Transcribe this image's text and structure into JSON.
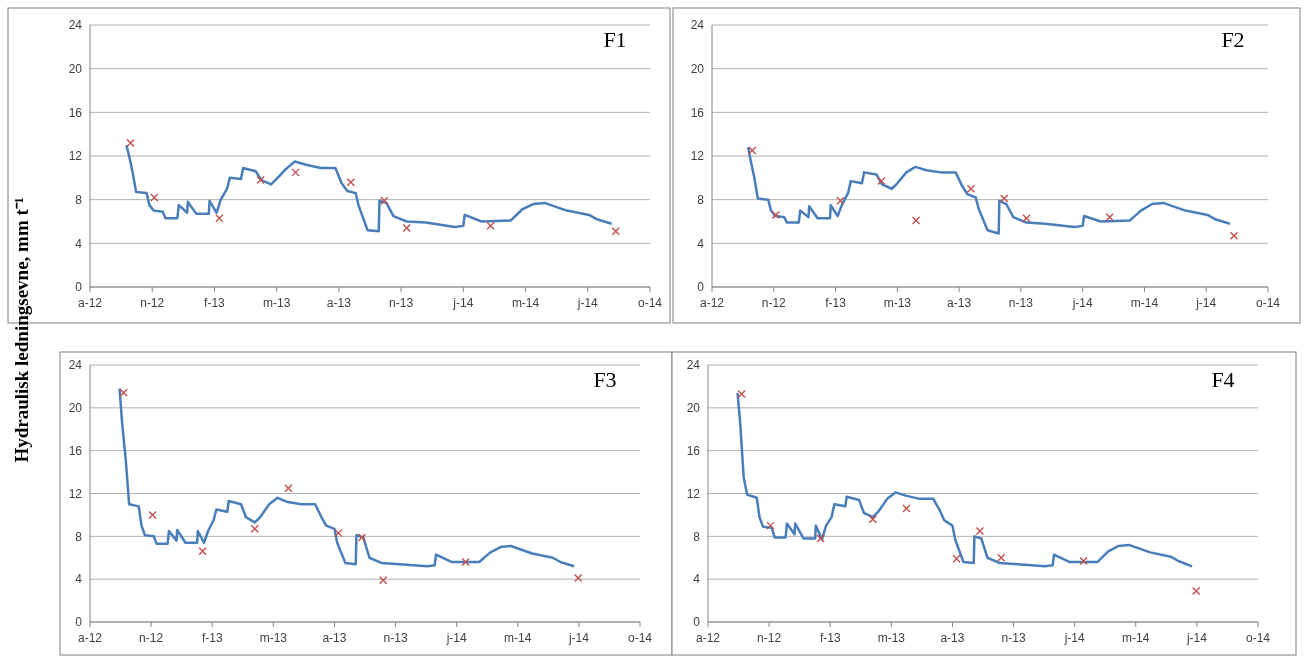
{
  "chart_data": [
    {
      "type": "line",
      "title": "F1",
      "ylabel": "Hydraulisk ledningsevne, mm t⁻¹",
      "ylim": [
        0,
        24
      ],
      "yticks": [
        0,
        4,
        8,
        12,
        16,
        20,
        24
      ],
      "xlim": [
        "2012-08-11",
        "2014-10-21"
      ],
      "xticks": [
        {
          "value": "2012-08-11",
          "label": "a-12"
        },
        {
          "value": "2012-11-08",
          "label": "n-12"
        },
        {
          "value": "2013-02-05",
          "label": "f-13"
        },
        {
          "value": "2013-05-05",
          "label": "m-13"
        },
        {
          "value": "2013-08-02",
          "label": "a-13"
        },
        {
          "value": "2013-10-30",
          "label": "n-13"
        },
        {
          "value": "2014-01-27",
          "label": "j-14"
        },
        {
          "value": "2014-04-26",
          "label": "m-14"
        },
        {
          "value": "2014-07-24",
          "label": "j-14"
        },
        {
          "value": "2014-10-21",
          "label": "o-14"
        }
      ],
      "grid": "y",
      "legend": false,
      "series": [
        {
          "type": "line",
          "color": "#4a7ebb",
          "x": [
            "2012-10-02",
            "2012-10-06",
            "2012-10-11",
            "2012-10-16",
            "2012-10-31",
            "2012-11-04",
            "2012-11-10",
            "2012-11-23",
            "2012-11-27",
            "2012-12-14",
            "2012-12-16",
            "2012-12-28",
            "2012-12-29",
            "2013-01-10",
            "2013-01-28",
            "2013-01-29",
            "2013-02-08",
            "2013-02-14",
            "2013-02-23",
            "2013-02-27",
            "2013-03-15",
            "2013-03-18",
            "2013-04-05",
            "2013-04-13",
            "2013-04-27",
            "2013-05-05",
            "2013-05-18",
            "2013-05-31",
            "2013-06-16",
            "2013-07-07",
            "2013-07-28",
            "2013-08-06",
            "2013-08-14",
            "2013-08-26",
            "2013-08-30",
            "2013-09-12",
            "2013-09-28",
            "2013-09-29",
            "2013-10-09",
            "2013-10-19",
            "2013-11-07",
            "2013-12-04",
            "2014-01-15",
            "2014-01-27",
            "2014-01-29",
            "2014-02-22",
            "2014-04-05",
            "2014-04-21",
            "2014-05-07",
            "2014-05-23",
            "2014-06-24",
            "2014-07-26",
            "2014-08-06",
            "2014-08-27"
          ],
          "values": [
            13.0,
            12.0,
            10.5,
            8.7,
            8.6,
            7.5,
            7.0,
            6.9,
            6.3,
            6.3,
            7.5,
            6.8,
            7.8,
            6.7,
            6.7,
            7.9,
            6.8,
            8.0,
            9.0,
            10.0,
            9.9,
            10.9,
            10.6,
            9.8,
            9.4,
            9.9,
            10.8,
            11.5,
            11.2,
            10.9,
            10.9,
            9.5,
            8.8,
            8.6,
            7.5,
            5.2,
            5.1,
            7.9,
            7.7,
            6.5,
            6.0,
            5.9,
            5.5,
            5.6,
            6.6,
            6.0,
            6.1,
            7.1,
            7.6,
            7.7,
            7.0,
            6.6,
            6.2,
            5.8
          ]
        },
        {
          "type": "scatter",
          "color": "#c0504d",
          "marker": "cross",
          "x": [
            "2012-10-08",
            "2012-11-11",
            "2013-02-12",
            "2013-04-12",
            "2013-06-01",
            "2013-08-19",
            "2013-10-06",
            "2013-11-07",
            "2014-03-07",
            "2014-09-02"
          ],
          "values": [
            13.2,
            8.2,
            6.3,
            9.8,
            10.5,
            9.6,
            7.9,
            5.4,
            5.6,
            5.1
          ]
        }
      ]
    },
    {
      "type": "line",
      "title": "F2",
      "ylim": [
        0,
        24
      ],
      "yticks": [
        0,
        4,
        8,
        12,
        16,
        20,
        24
      ],
      "xlim": [
        "2012-08-11",
        "2014-10-21"
      ],
      "xticks": [
        {
          "value": "2012-08-11",
          "label": "a-12"
        },
        {
          "value": "2012-11-08",
          "label": "n-12"
        },
        {
          "value": "2013-02-05",
          "label": "f-13"
        },
        {
          "value": "2013-05-05",
          "label": "m-13"
        },
        {
          "value": "2013-08-02",
          "label": "a-13"
        },
        {
          "value": "2013-10-30",
          "label": "n-13"
        },
        {
          "value": "2014-01-27",
          "label": "j-14"
        },
        {
          "value": "2014-04-26",
          "label": "m-14"
        },
        {
          "value": "2014-07-24",
          "label": "j-14"
        },
        {
          "value": "2014-10-21",
          "label": "o-14"
        }
      ],
      "grid": "y",
      "legend": false,
      "series": [
        {
          "type": "line",
          "color": "#4a7ebb",
          "x": [
            "2012-10-02",
            "2012-10-06",
            "2012-10-11",
            "2012-10-16",
            "2012-10-31",
            "2012-11-04",
            "2012-11-10",
            "2012-11-23",
            "2012-11-27",
            "2012-12-14",
            "2012-12-16",
            "2012-12-28",
            "2012-12-29",
            "2013-01-10",
            "2013-01-28",
            "2013-01-29",
            "2013-02-08",
            "2013-02-14",
            "2013-02-23",
            "2013-02-27",
            "2013-03-15",
            "2013-03-18",
            "2013-04-05",
            "2013-04-13",
            "2013-04-27",
            "2013-05-05",
            "2013-05-18",
            "2013-05-31",
            "2013-06-16",
            "2013-07-07",
            "2013-07-28",
            "2013-08-06",
            "2013-08-14",
            "2013-08-26",
            "2013-08-30",
            "2013-09-12",
            "2013-09-28",
            "2013-09-29",
            "2013-10-09",
            "2013-10-19",
            "2013-11-07",
            "2013-12-04",
            "2014-01-15",
            "2014-01-27",
            "2014-01-29",
            "2014-02-22",
            "2014-04-05",
            "2014-04-21",
            "2014-05-07",
            "2014-05-23",
            "2014-06-24",
            "2014-07-26",
            "2014-08-06",
            "2014-08-27"
          ],
          "values": [
            12.8,
            11.5,
            10.0,
            8.1,
            8.0,
            7.0,
            6.5,
            6.4,
            5.9,
            5.9,
            7.0,
            6.4,
            7.4,
            6.3,
            6.3,
            7.5,
            6.5,
            7.5,
            8.6,
            9.7,
            9.5,
            10.5,
            10.3,
            9.4,
            9.0,
            9.5,
            10.5,
            11.0,
            10.7,
            10.5,
            10.5,
            9.3,
            8.5,
            8.2,
            7.2,
            5.2,
            4.9,
            7.9,
            7.6,
            6.4,
            5.9,
            5.8,
            5.5,
            5.6,
            6.5,
            6.0,
            6.1,
            7.0,
            7.6,
            7.7,
            7.0,
            6.6,
            6.2,
            5.8
          ]
        },
        {
          "type": "scatter",
          "color": "#c0504d",
          "marker": "cross",
          "x": [
            "2012-10-08",
            "2012-11-11",
            "2013-02-12",
            "2013-04-12",
            "2013-06-01",
            "2013-08-19",
            "2013-10-06",
            "2013-11-07",
            "2014-03-07",
            "2014-09-02"
          ],
          "values": [
            12.5,
            6.6,
            7.9,
            9.7,
            6.1,
            9.0,
            8.1,
            6.3,
            6.4,
            4.7
          ]
        }
      ]
    },
    {
      "type": "line",
      "title": "F3",
      "ylim": [
        0,
        24
      ],
      "yticks": [
        0,
        4,
        8,
        12,
        16,
        20,
        24
      ],
      "xlim": [
        "2012-08-11",
        "2014-10-21"
      ],
      "xticks": [
        {
          "value": "2012-08-11",
          "label": "a-12"
        },
        {
          "value": "2012-11-08",
          "label": "n-12"
        },
        {
          "value": "2013-02-05",
          "label": "f-13"
        },
        {
          "value": "2013-05-05",
          "label": "m-13"
        },
        {
          "value": "2013-08-02",
          "label": "a-13"
        },
        {
          "value": "2013-10-30",
          "label": "n-13"
        },
        {
          "value": "2014-01-27",
          "label": "j-14"
        },
        {
          "value": "2014-04-26",
          "label": "m-14"
        },
        {
          "value": "2014-07-24",
          "label": "j-14"
        },
        {
          "value": "2014-10-21",
          "label": "o-14"
        }
      ],
      "grid": "y",
      "legend": false,
      "series": [
        {
          "type": "line",
          "color": "#4a7ebb",
          "x": [
            "2012-09-23",
            "2012-09-27",
            "2012-10-02",
            "2012-10-07",
            "2012-10-21",
            "2012-10-25",
            "2012-10-30",
            "2012-11-12",
            "2012-11-16",
            "2012-12-02",
            "2012-12-04",
            "2012-12-15",
            "2012-12-16",
            "2012-12-28",
            "2013-01-14",
            "2013-01-15",
            "2013-01-24",
            "2013-01-30",
            "2013-02-07",
            "2013-02-11",
            "2013-02-27",
            "2013-03-01",
            "2013-03-19",
            "2013-03-26",
            "2013-04-08",
            "2013-04-16",
            "2013-04-29",
            "2013-05-11",
            "2013-05-26",
            "2013-06-15",
            "2013-07-05",
            "2013-07-14",
            "2013-07-21",
            "2013-08-02",
            "2013-08-06",
            "2013-08-18",
            "2013-09-02",
            "2013-09-03",
            "2013-09-13",
            "2013-09-22",
            "2013-10-10",
            "2013-11-05",
            "2013-12-15",
            "2013-12-26",
            "2013-12-28",
            "2014-01-20",
            "2014-03-01",
            "2014-03-17",
            "2014-04-01",
            "2014-04-16",
            "2014-05-17",
            "2014-06-16",
            "2014-06-27",
            "2014-07-17"
          ],
          "values": [
            21.8,
            18.4,
            15.2,
            11.0,
            10.8,
            9.0,
            8.1,
            8.0,
            7.3,
            7.3,
            8.5,
            7.6,
            8.6,
            7.4,
            7.4,
            8.5,
            7.4,
            8.5,
            9.5,
            10.5,
            10.3,
            11.3,
            11.0,
            9.8,
            9.3,
            9.8,
            11.0,
            11.6,
            11.2,
            11.0,
            11.0,
            9.8,
            9.0,
            8.7,
            7.4,
            5.5,
            5.4,
            8.1,
            7.9,
            6.0,
            5.5,
            5.4,
            5.2,
            5.3,
            6.3,
            5.6,
            5.6,
            6.5,
            7.0,
            7.1,
            6.4,
            6.0,
            5.6,
            5.2
          ]
        },
        {
          "type": "scatter",
          "color": "#c0504d",
          "marker": "cross",
          "x": [
            "2012-09-29",
            "2012-11-10",
            "2013-01-22",
            "2013-04-08",
            "2013-05-27",
            "2013-08-08",
            "2013-09-11",
            "2013-10-12",
            "2014-02-09",
            "2014-07-23"
          ],
          "values": [
            21.4,
            10.0,
            6.6,
            8.7,
            12.5,
            8.3,
            7.9,
            3.9,
            5.6,
            4.1
          ]
        }
      ]
    },
    {
      "type": "line",
      "title": "F4",
      "ylim": [
        0,
        24
      ],
      "yticks": [
        0,
        4,
        8,
        12,
        16,
        20,
        24
      ],
      "xlim": [
        "2012-08-11",
        "2014-10-21"
      ],
      "xticks": [
        {
          "value": "2012-08-11",
          "label": "a-12"
        },
        {
          "value": "2012-11-08",
          "label": "n-12"
        },
        {
          "value": "2013-02-05",
          "label": "f-13"
        },
        {
          "value": "2013-05-05",
          "label": "m-13"
        },
        {
          "value": "2013-08-02",
          "label": "a-13"
        },
        {
          "value": "2013-10-30",
          "label": "n-13"
        },
        {
          "value": "2014-01-27",
          "label": "j-14"
        },
        {
          "value": "2014-04-26",
          "label": "m-14"
        },
        {
          "value": "2014-07-24",
          "label": "j-14"
        },
        {
          "value": "2014-10-21",
          "label": "o-14"
        }
      ],
      "grid": "y",
      "legend": false,
      "series": [
        {
          "type": "line",
          "color": "#4a7ebb",
          "x": [
            "2012-09-23",
            "2012-09-27",
            "2012-10-02",
            "2012-10-07",
            "2012-10-21",
            "2012-10-25",
            "2012-10-30",
            "2012-11-12",
            "2012-11-16",
            "2012-12-02",
            "2012-12-04",
            "2012-12-15",
            "2012-12-16",
            "2012-12-28",
            "2013-01-14",
            "2013-01-15",
            "2013-01-24",
            "2013-01-30",
            "2013-02-07",
            "2013-02-11",
            "2013-02-27",
            "2013-03-01",
            "2013-03-19",
            "2013-03-26",
            "2013-04-08",
            "2013-04-16",
            "2013-04-29",
            "2013-05-11",
            "2013-05-26",
            "2013-06-15",
            "2013-07-05",
            "2013-07-14",
            "2013-07-21",
            "2013-08-02",
            "2013-08-06",
            "2013-08-18",
            "2013-09-02",
            "2013-09-03",
            "2013-09-13",
            "2013-09-22",
            "2013-10-10",
            "2013-11-05",
            "2013-12-15",
            "2013-12-26",
            "2013-12-28",
            "2014-01-20",
            "2014-03-01",
            "2014-03-17",
            "2014-04-01",
            "2014-04-16",
            "2014-05-17",
            "2014-06-16",
            "2014-06-27",
            "2014-07-17"
          ],
          "values": [
            21.4,
            18.5,
            13.5,
            11.9,
            11.6,
            9.8,
            8.9,
            8.8,
            7.9,
            7.9,
            9.2,
            8.2,
            9.2,
            7.8,
            7.8,
            9.0,
            7.7,
            9.0,
            9.8,
            11.0,
            10.8,
            11.7,
            11.4,
            10.2,
            9.8,
            10.3,
            11.5,
            12.1,
            11.8,
            11.5,
            11.5,
            10.5,
            9.5,
            9.0,
            7.7,
            5.6,
            5.5,
            8.0,
            7.8,
            6.0,
            5.5,
            5.4,
            5.2,
            5.3,
            6.3,
            5.6,
            5.6,
            6.6,
            7.1,
            7.2,
            6.5,
            6.1,
            5.7,
            5.2
          ]
        },
        {
          "type": "scatter",
          "color": "#c0504d",
          "marker": "cross",
          "x": [
            "2012-09-29",
            "2012-11-10",
            "2013-01-22",
            "2013-04-08",
            "2013-05-27",
            "2013-08-08",
            "2013-09-11",
            "2013-10-12",
            "2014-02-09",
            "2014-07-23"
          ],
          "values": [
            21.3,
            9.0,
            7.8,
            9.6,
            10.6,
            5.9,
            8.5,
            6.0,
            5.7,
            2.9
          ]
        }
      ]
    }
  ]
}
